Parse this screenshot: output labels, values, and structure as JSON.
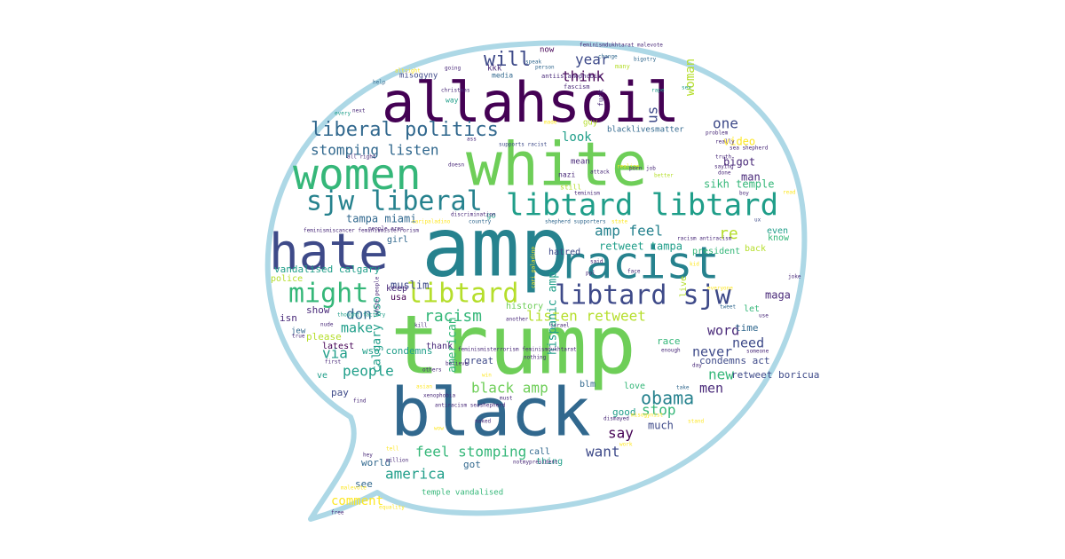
{
  "palette": {
    "outline": "#add8e6",
    "background": "#ffffff",
    "dark_purple": "#440154",
    "indigo": "#482878",
    "blue": "#3e4a89",
    "steel": "#31688e",
    "teal": "#26828e",
    "green_teal": "#1f9e89",
    "green": "#35b779",
    "light_green": "#6ece58",
    "lime": "#b5de2b",
    "yellow": "#fde725"
  },
  "words": [
    {
      "text": "trump",
      "color": "light_green"
    },
    {
      "text": "amp",
      "color": "teal"
    },
    {
      "text": "white",
      "color": "light_green"
    },
    {
      "text": "black",
      "color": "steel"
    },
    {
      "text": "allahsoil",
      "color": "dark_purple"
    },
    {
      "text": "racist",
      "color": "teal"
    },
    {
      "text": "hate",
      "color": "blue"
    },
    {
      "text": "women",
      "color": "green"
    },
    {
      "text": "libtard libtard",
      "color": "green_teal"
    },
    {
      "text": "sjw liberal",
      "color": "teal"
    },
    {
      "text": "might",
      "color": "green"
    },
    {
      "text": "libtard",
      "color": "lime"
    },
    {
      "text": "libtard sjw",
      "color": "blue"
    },
    {
      "text": "liberal politics",
      "color": "steel"
    },
    {
      "text": "will",
      "color": "blue"
    },
    {
      "text": "obama",
      "color": "teal"
    },
    {
      "text": "racism",
      "color": "green"
    },
    {
      "text": "black amp",
      "color": "light_green"
    },
    {
      "text": "stomping listen",
      "color": "steel"
    },
    {
      "text": "amp feel",
      "color": "teal"
    },
    {
      "text": "listen retweet",
      "color": "lime"
    },
    {
      "text": "feel stomping",
      "color": "green"
    },
    {
      "text": "america",
      "color": "green_teal"
    },
    {
      "text": "woman",
      "color": "lime"
    },
    {
      "text": "us",
      "color": "blue"
    },
    {
      "text": "year",
      "color": "blue"
    },
    {
      "text": "think",
      "color": "dark_purple"
    },
    {
      "text": "one",
      "color": "blue"
    },
    {
      "text": "look",
      "color": "green_teal"
    },
    {
      "text": "people",
      "color": "green_teal"
    },
    {
      "text": "stop",
      "color": "green"
    },
    {
      "text": "say",
      "color": "dark_purple"
    },
    {
      "text": "want",
      "color": "blue"
    },
    {
      "text": "new",
      "color": "green"
    },
    {
      "text": "word",
      "color": "indigo"
    },
    {
      "text": "need",
      "color": "blue"
    },
    {
      "text": "never",
      "color": "blue"
    },
    {
      "text": "men",
      "color": "indigo"
    },
    {
      "text": "re",
      "color": "lime"
    },
    {
      "text": "make",
      "color": "green_teal"
    },
    {
      "text": "don",
      "color": "steel"
    },
    {
      "text": "via",
      "color": "green_teal"
    },
    {
      "text": "comment",
      "color": "yellow"
    },
    {
      "text": "calgary wso",
      "color": "green_teal"
    },
    {
      "text": "american",
      "color": "green"
    },
    {
      "text": "hispanic amp",
      "color": "green_teal"
    },
    {
      "text": "tampa miami",
      "color": "steel"
    },
    {
      "text": "retweet tampa",
      "color": "green_teal"
    },
    {
      "text": "sikh temple",
      "color": "green"
    },
    {
      "text": "bigot",
      "color": "indigo"
    },
    {
      "text": "man",
      "color": "indigo"
    },
    {
      "text": "video",
      "color": "yellow"
    },
    {
      "text": "vandalised calgary",
      "color": "green_teal"
    },
    {
      "text": "police",
      "color": "lime"
    },
    {
      "text": "muslim",
      "color": "blue"
    },
    {
      "text": "girl",
      "color": "steel"
    },
    {
      "text": "keep",
      "color": "indigo"
    },
    {
      "text": "usa",
      "color": "dark_purple"
    },
    {
      "text": "show",
      "color": "indigo"
    },
    {
      "text": "isn",
      "color": "indigo"
    },
    {
      "text": "please",
      "color": "lime"
    },
    {
      "text": "wso condemns",
      "color": "green_teal"
    },
    {
      "text": "latest",
      "color": "dark_purple"
    },
    {
      "text": "jew",
      "color": "steel"
    },
    {
      "text": "ve",
      "color": "green_teal"
    },
    {
      "text": "pay",
      "color": "blue"
    },
    {
      "text": "world",
      "color": "steel"
    },
    {
      "text": "see",
      "color": "steel"
    },
    {
      "text": "temple vandalised",
      "color": "green"
    },
    {
      "text": "got",
      "color": "steel"
    },
    {
      "text": "call",
      "color": "steel"
    },
    {
      "text": "thing",
      "color": "green_teal"
    },
    {
      "text": "much",
      "color": "blue"
    },
    {
      "text": "good",
      "color": "green_teal"
    },
    {
      "text": "love",
      "color": "green"
    },
    {
      "text": "blm",
      "color": "steel"
    },
    {
      "text": "great",
      "color": "blue"
    },
    {
      "text": "thank",
      "color": "indigo"
    },
    {
      "text": "race",
      "color": "green"
    },
    {
      "text": "condemns act",
      "color": "blue"
    },
    {
      "text": "retweet boricua",
      "color": "blue"
    },
    {
      "text": "time",
      "color": "steel"
    },
    {
      "text": "let",
      "color": "green"
    },
    {
      "text": "maga",
      "color": "indigo"
    },
    {
      "text": "back",
      "color": "lime"
    },
    {
      "text": "know",
      "color": "green"
    },
    {
      "text": "even",
      "color": "green_teal"
    },
    {
      "text": "president",
      "color": "green"
    },
    {
      "text": "hatred",
      "color": "blue"
    },
    {
      "text": "live",
      "color": "lime"
    },
    {
      "text": "history",
      "color": "light_green"
    },
    {
      "text": "now",
      "color": "dark_purple"
    },
    {
      "text": "misogyny",
      "color": "blue"
    },
    {
      "text": "kkk",
      "color": "indigo"
    },
    {
      "text": "media",
      "color": "steel"
    },
    {
      "text": "way",
      "color": "green_teal"
    },
    {
      "text": "mean",
      "color": "indigo"
    },
    {
      "text": "nazi",
      "color": "indigo"
    },
    {
      "text": "still",
      "color": "lime"
    },
    {
      "text": "go",
      "color": "green_teal"
    },
    {
      "text": "guy",
      "color": "lime"
    },
    {
      "text": "blacklivesmatter",
      "color": "steel"
    },
    {
      "text": "fuck",
      "color": "indigo"
    },
    {
      "text": "many",
      "color": "lime"
    },
    {
      "text": "antiislamophobia",
      "color": "indigo"
    },
    {
      "text": "fascism",
      "color": "indigo"
    },
    {
      "text": "feminismdukhtarat malevote",
      "color": "indigo"
    },
    {
      "text": "change",
      "color": "steel"
    },
    {
      "text": "bigotry",
      "color": "steel"
    },
    {
      "text": "speak",
      "color": "steel"
    },
    {
      "text": "person",
      "color": "steel"
    },
    {
      "text": "going",
      "color": "indigo"
    },
    {
      "text": "altright",
      "color": "yellow"
    },
    {
      "text": "help",
      "color": "steel"
    },
    {
      "text": "christmas",
      "color": "indigo"
    },
    {
      "text": "rape",
      "color": "green_teal"
    },
    {
      "text": "sex",
      "color": "green_teal"
    },
    {
      "text": "every",
      "color": "green_teal"
    },
    {
      "text": "next",
      "color": "indigo"
    },
    {
      "text": "ass",
      "color": "indigo"
    },
    {
      "text": "supports racist",
      "color": "blue"
    },
    {
      "text": "all right",
      "color": "indigo"
    },
    {
      "text": "doesn",
      "color": "indigo"
    },
    {
      "text": "teminism",
      "color": "indigo"
    },
    {
      "text": "realize",
      "color": "yellow"
    },
    {
      "text": "attack",
      "color": "indigo"
    },
    {
      "text": "job",
      "color": "indigo"
    },
    {
      "text": "porn",
      "color": "indigo"
    },
    {
      "text": "better",
      "color": "lime"
    },
    {
      "text": "saying",
      "color": "indigo"
    },
    {
      "text": "done",
      "color": "indigo"
    },
    {
      "text": "boy",
      "color": "indigo"
    },
    {
      "text": "problem",
      "color": "indigo"
    },
    {
      "text": "really",
      "color": "indigo"
    },
    {
      "text": "sea shepherd",
      "color": "indigo"
    },
    {
      "text": "truth",
      "color": "indigo"
    },
    {
      "text": "read",
      "color": "yellow"
    },
    {
      "text": "ux",
      "color": "blue"
    },
    {
      "text": "discrimination",
      "color": "indigo"
    },
    {
      "text": "people aren",
      "color": "indigo"
    },
    {
      "text": "shepherd supporters",
      "color": "steel"
    },
    {
      "text": "feminismiscancer feminismisterrorism",
      "color": "indigo"
    },
    {
      "text": "caripaladino",
      "color": "yellow"
    },
    {
      "text": "country",
      "color": "steel"
    },
    {
      "text": "state",
      "color": "yellow"
    },
    {
      "text": "racism antiracism",
      "color": "indigo"
    },
    {
      "text": "face",
      "color": "indigo"
    },
    {
      "text": "said",
      "color": "indigo"
    },
    {
      "text": "ppl",
      "color": "indigo"
    },
    {
      "text": "kid",
      "color": "yellow"
    },
    {
      "text": "everyone",
      "color": "yellow"
    },
    {
      "text": "joke",
      "color": "indigo"
    },
    {
      "text": "tweet",
      "color": "steel"
    },
    {
      "text": "use",
      "color": "indigo"
    },
    {
      "text": "cari paladino",
      "color": "yellow"
    },
    {
      "text": "white people",
      "color": "indigo"
    },
    {
      "text": "thought factory",
      "color": "green_teal"
    },
    {
      "text": "true",
      "color": "indigo"
    },
    {
      "text": "nude",
      "color": "indigo"
    },
    {
      "text": "another",
      "color": "indigo"
    },
    {
      "text": "kill",
      "color": "indigo"
    },
    {
      "text": "israel",
      "color": "indigo"
    },
    {
      "text": "feminismisterrorism feminismdukhtarat",
      "color": "indigo"
    },
    {
      "text": "believe",
      "color": "indigo"
    },
    {
      "text": "nothing",
      "color": "indigo"
    },
    {
      "text": "first",
      "color": "indigo"
    },
    {
      "text": "others",
      "color": "indigo"
    },
    {
      "text": "win",
      "color": "yellow"
    },
    {
      "text": "asian",
      "color": "yellow"
    },
    {
      "text": "xenophobia",
      "color": "indigo"
    },
    {
      "text": "must",
      "color": "indigo"
    },
    {
      "text": "antiracism seashepherd",
      "color": "indigo"
    },
    {
      "text": "find",
      "color": "indigo"
    },
    {
      "text": "naked",
      "color": "indigo"
    },
    {
      "text": "wow",
      "color": "yellow"
    },
    {
      "text": "tell",
      "color": "yellow"
    },
    {
      "text": "hey",
      "color": "indigo"
    },
    {
      "text": "million",
      "color": "indigo"
    },
    {
      "text": "notmypresident",
      "color": "indigo"
    },
    {
      "text": "malevote",
      "color": "yellow"
    },
    {
      "text": "equality",
      "color": "yellow"
    },
    {
      "text": "free",
      "color": "indigo"
    },
    {
      "text": "take",
      "color": "steel"
    },
    {
      "text": "misogynist",
      "color": "yellow"
    },
    {
      "text": "dismayed",
      "color": "indigo"
    },
    {
      "text": "stand",
      "color": "yellow"
    },
    {
      "text": "day",
      "color": "indigo"
    },
    {
      "text": "work",
      "color": "yellow"
    },
    {
      "text": "someone",
      "color": "indigo"
    },
    {
      "text": "enough",
      "color": "indigo"
    },
    {
      "text": "made",
      "color": "yellow"
    },
    {
      "text": "post",
      "color": "indigo"
    }
  ]
}
